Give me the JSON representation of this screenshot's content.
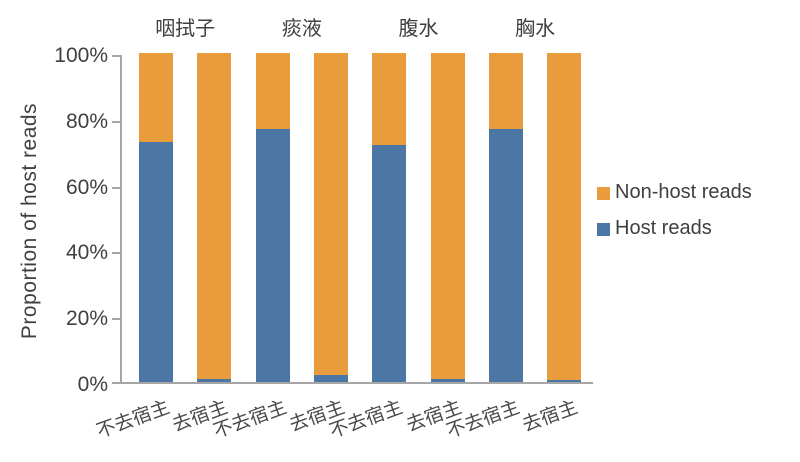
{
  "chart_data": {
    "type": "bar",
    "stacked": true,
    "title": "",
    "ylabel": "Proportion of host reads",
    "xlabel": "",
    "ylim": [
      0,
      100
    ],
    "ytick_labels": [
      "100%",
      "80%",
      "60%",
      "40%",
      "20%",
      "0%"
    ],
    "grid": false,
    "legend_position": "right",
    "group_labels": [
      "咽拭子",
      "痰液",
      "腹水",
      "胸水"
    ],
    "categories": [
      "不去宿主",
      "去宿主",
      "不去宿主",
      "去宿主",
      "不去宿主",
      "去宿主",
      "不去宿主",
      "去宿主"
    ],
    "series": [
      {
        "name": "Host reads",
        "color": "#4C77A4",
        "values": [
          73,
          1,
          77,
          2,
          72,
          1,
          77,
          0.6
        ]
      },
      {
        "name": "Non-host reads",
        "color": "#E89C3C",
        "values": [
          27,
          99,
          23,
          98,
          28,
          99,
          23,
          99.4
        ]
      }
    ],
    "legend": [
      {
        "label": "Non-host reads",
        "color": "#E89C3C"
      },
      {
        "label": "Host reads",
        "color": "#4C77A4"
      }
    ]
  },
  "style": {
    "background": "#FFFFFF",
    "text_color": "#3F3F3F",
    "axis_color": "#A6A6A6"
  }
}
